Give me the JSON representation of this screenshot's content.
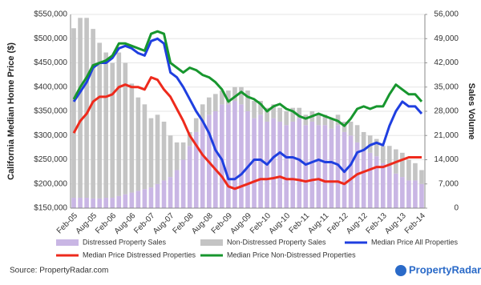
{
  "chart_data": {
    "type": "combo",
    "y_title": "California Median Home Price ($)",
    "y2_title": "Sales Volume",
    "source": "Source: PropertyRadar.com",
    "logo": "PropertyRadar",
    "grid": true,
    "legend": "bottom",
    "categories": [
      "Feb-05",
      null,
      null,
      "Aug-05",
      null,
      null,
      "Feb-06",
      null,
      null,
      "Aug-06",
      null,
      null,
      "Feb-07",
      null,
      null,
      "Aug-07",
      null,
      null,
      "Feb-08",
      null,
      null,
      "Aug-08",
      null,
      null,
      "Feb-09",
      null,
      null,
      "Aug-09",
      null,
      null,
      "Feb-10",
      null,
      null,
      "Aug-10",
      null,
      null,
      "Feb-11",
      null,
      null,
      "Aug-11",
      null,
      null,
      "Feb-12",
      null,
      null,
      "Aug-12",
      null,
      null,
      "Feb-13",
      null,
      null,
      "Aug-13",
      null,
      null,
      "Feb-14"
    ],
    "ylim": [
      150000,
      550000
    ],
    "yticks": [
      {
        "value": 150000,
        "label": "$150,000"
      },
      {
        "value": 200000,
        "label": "$200,000"
      },
      {
        "value": 250000,
        "label": "$250,000"
      },
      {
        "value": 300000,
        "label": "$300,000"
      },
      {
        "value": 350000,
        "label": "$350,000"
      },
      {
        "value": 400000,
        "label": "$400,000"
      },
      {
        "value": 450000,
        "label": "$450,000"
      },
      {
        "value": 500000,
        "label": "$500,000"
      },
      {
        "value": 550000,
        "label": "$550,000"
      }
    ],
    "y2lim": [
      0,
      56000
    ],
    "y2ticks": [
      0,
      {
        "value": 7000,
        "label": "7,000"
      },
      {
        "value": 14000,
        "label": "14,000"
      },
      {
        "value": 21000,
        "label": "21,000"
      },
      {
        "value": 28000,
        "label": "28,000"
      },
      {
        "value": 35000,
        "label": "35,000"
      },
      {
        "value": 42000,
        "label": "42,000"
      },
      {
        "value": 49000,
        "label": "49,000"
      },
      {
        "value": 56000,
        "label": "56,000"
      }
    ],
    "series": [
      {
        "name": "Distressed Property Sales",
        "type": "bar",
        "axis": "y2",
        "color": "#c9b6e4",
        "values": [
          3000,
          3000,
          3000,
          2800,
          2800,
          3000,
          3000,
          3500,
          4000,
          4500,
          5000,
          5500,
          6000,
          7000,
          8000,
          9000,
          11000,
          14000,
          18000,
          22000,
          25000,
          27000,
          28000,
          30000,
          30000,
          31000,
          30000,
          28000,
          26000,
          27000,
          25000,
          26000,
          25000,
          24000,
          25000,
          26000,
          24000,
          25000,
          24000,
          24000,
          23000,
          24000,
          22000,
          21000,
          19000,
          17000,
          16000,
          15000,
          13000,
          12000,
          10000,
          9000,
          8000,
          8000,
          7000
        ]
      },
      {
        "name": "Non-Distressed Property Sales",
        "type": "bar",
        "axis": "y2",
        "color": "#c4c4c4",
        "values": [
          49000,
          52000,
          52000,
          49000,
          45000,
          42000,
          39000,
          41500,
          38000,
          31500,
          27000,
          24500,
          20000,
          20000,
          17000,
          12000,
          8000,
          5000,
          4000,
          4000,
          5000,
          5000,
          5000,
          4000,
          4000,
          4000,
          5000,
          6000,
          5000,
          4000,
          4000,
          4000,
          4000,
          4000,
          4000,
          3000,
          3000,
          3000,
          3000,
          3000,
          3000,
          3000,
          3000,
          4000,
          5000,
          5000,
          5000,
          5000,
          5000,
          6000,
          7000,
          7000,
          6000,
          5000,
          4000
        ]
      },
      {
        "name": "Median Price All Properties",
        "type": "line",
        "color": "#1f3fe0",
        "values": [
          370000,
          390000,
          410000,
          440000,
          450000,
          450000,
          460000,
          480000,
          485000,
          480000,
          470000,
          465000,
          495000,
          500000,
          490000,
          430000,
          420000,
          400000,
          375000,
          350000,
          330000,
          305000,
          270000,
          250000,
          210000,
          210000,
          220000,
          235000,
          250000,
          250000,
          240000,
          255000,
          265000,
          255000,
          255000,
          250000,
          240000,
          245000,
          250000,
          245000,
          245000,
          240000,
          225000,
          240000,
          265000,
          270000,
          280000,
          285000,
          280000,
          320000,
          350000,
          370000,
          360000,
          360000,
          345000
        ]
      },
      {
        "name": "Median Price Distressed Properties",
        "type": "line",
        "color": "#ee2a1c",
        "values": [
          305000,
          330000,
          345000,
          370000,
          380000,
          380000,
          385000,
          400000,
          405000,
          400000,
          400000,
          395000,
          420000,
          415000,
          395000,
          380000,
          355000,
          330000,
          300000,
          280000,
          260000,
          245000,
          230000,
          215000,
          195000,
          190000,
          195000,
          200000,
          205000,
          210000,
          210000,
          212000,
          215000,
          210000,
          210000,
          208000,
          205000,
          208000,
          210000,
          205000,
          205000,
          205000,
          200000,
          210000,
          220000,
          225000,
          230000,
          235000,
          235000,
          240000,
          245000,
          250000,
          255000,
          255000,
          255000
        ]
      },
      {
        "name": "Median Price Non-Distressed Properties",
        "type": "line",
        "color": "#17962e",
        "values": [
          375000,
          400000,
          420000,
          445000,
          450000,
          455000,
          465000,
          490000,
          490000,
          485000,
          480000,
          475000,
          510000,
          515000,
          510000,
          450000,
          440000,
          430000,
          440000,
          435000,
          425000,
          420000,
          410000,
          395000,
          370000,
          380000,
          390000,
          380000,
          375000,
          365000,
          350000,
          360000,
          365000,
          355000,
          350000,
          340000,
          335000,
          340000,
          345000,
          340000,
          335000,
          330000,
          320000,
          335000,
          355000,
          360000,
          355000,
          360000,
          360000,
          385000,
          405000,
          395000,
          385000,
          385000,
          370000
        ]
      }
    ]
  }
}
